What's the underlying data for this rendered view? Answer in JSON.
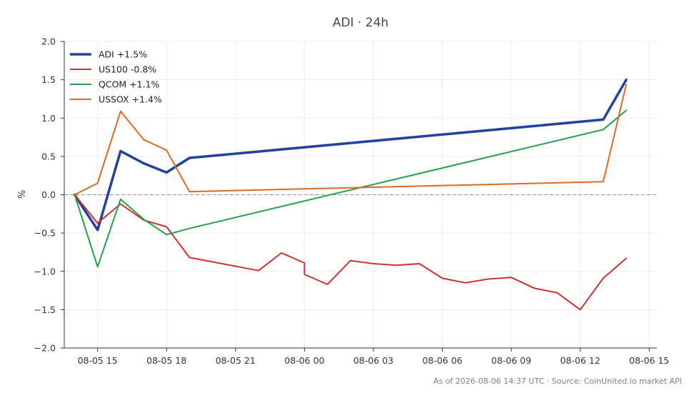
{
  "chart_data": {
    "type": "line",
    "title": "ADI · 24h",
    "ylabel": "%",
    "xlabel": "",
    "ylim": [
      -2.0,
      2.0
    ],
    "yticks": [
      -2.0,
      -1.5,
      -1.0,
      -0.5,
      0.0,
      0.5,
      1.0,
      1.5,
      2.0
    ],
    "ytick_labels": [
      "−2.0",
      "−1.5",
      "−1.0",
      "−0.5",
      "0.0",
      "0.5",
      "1.0",
      "1.5",
      "2.0"
    ],
    "xlim": [
      "2026-08-05 14:00",
      "2026-08-06 15:00"
    ],
    "xticks": [
      "2026-08-05 15:00",
      "2026-08-05 18:00",
      "2026-08-05 21:00",
      "2026-08-06 00:00",
      "2026-08-06 03:00",
      "2026-08-06 06:00",
      "2026-08-06 09:00",
      "2026-08-06 12:00",
      "2026-08-06 15:00"
    ],
    "xtick_labels": [
      "08-05 15",
      "08-05 18",
      "08-05 21",
      "08-06 00",
      "08-06 03",
      "08-06 06",
      "08-06 09",
      "08-06 12",
      "08-06 15"
    ],
    "grid": true,
    "zero_line": true,
    "legend_position": "top-left",
    "series": [
      {
        "name": "ADI +1.5%",
        "color": "#2341a0",
        "width": 3.5,
        "points": [
          [
            "2026-08-05 14:00",
            0.0
          ],
          [
            "2026-08-05 15:00",
            -0.46
          ],
          [
            "2026-08-05 16:00",
            0.57
          ],
          [
            "2026-08-05 17:00",
            0.41
          ],
          [
            "2026-08-05 18:00",
            0.29
          ],
          [
            "2026-08-05 19:00",
            0.48
          ],
          [
            "2026-08-06 13:00",
            0.98
          ],
          [
            "2026-08-06 14:00",
            1.5
          ]
        ]
      },
      {
        "name": "US100 -0.8%",
        "color": "#d03030",
        "width": 2,
        "points": [
          [
            "2026-08-05 14:00",
            0.0
          ],
          [
            "2026-08-05 15:00",
            -0.37
          ],
          [
            "2026-08-05 16:00",
            -0.12
          ],
          [
            "2026-08-05 17:00",
            -0.33
          ],
          [
            "2026-08-05 18:00",
            -0.42
          ],
          [
            "2026-08-05 19:00",
            -0.82
          ],
          [
            "2026-08-05 22:00",
            -0.99
          ],
          [
            "2026-08-05 23:00",
            -0.76
          ],
          [
            "2026-08-06 00:00",
            -0.89
          ],
          [
            "2026-08-06 00:00",
            -1.04
          ],
          [
            "2026-08-06 01:00",
            -1.17
          ],
          [
            "2026-08-06 02:00",
            -0.86
          ],
          [
            "2026-08-06 03:00",
            -0.9
          ],
          [
            "2026-08-06 04:00",
            -0.92
          ],
          [
            "2026-08-06 05:00",
            -0.9
          ],
          [
            "2026-08-06 06:00",
            -1.09
          ],
          [
            "2026-08-06 07:00",
            -1.15
          ],
          [
            "2026-08-06 08:00",
            -1.1
          ],
          [
            "2026-08-06 09:00",
            -1.08
          ],
          [
            "2026-08-06 10:00",
            -1.22
          ],
          [
            "2026-08-06 11:00",
            -1.28
          ],
          [
            "2026-08-06 12:00",
            -1.5
          ],
          [
            "2026-08-06 13:00",
            -1.09
          ],
          [
            "2026-08-06 14:00",
            -0.83
          ]
        ]
      },
      {
        "name": "QCOM +1.1%",
        "color": "#22a04a",
        "width": 2,
        "points": [
          [
            "2026-08-05 14:00",
            0.0
          ],
          [
            "2026-08-05 15:00",
            -0.94
          ],
          [
            "2026-08-05 16:00",
            -0.06
          ],
          [
            "2026-08-05 17:00",
            -0.32
          ],
          [
            "2026-08-05 18:00",
            -0.52
          ],
          [
            "2026-08-05 19:00",
            -0.44
          ],
          [
            "2026-08-06 13:00",
            0.85
          ],
          [
            "2026-08-06 14:00",
            1.1
          ]
        ]
      },
      {
        "name": "USSOX +1.4%",
        "color": "#e06a1b",
        "width": 2,
        "points": [
          [
            "2026-08-05 14:00",
            0.0
          ],
          [
            "2026-08-05 15:00",
            0.15
          ],
          [
            "2026-08-05 16:00",
            1.09
          ],
          [
            "2026-08-05 17:00",
            0.72
          ],
          [
            "2026-08-05 18:00",
            0.58
          ],
          [
            "2026-08-05 19:00",
            0.04
          ],
          [
            "2026-08-06 13:00",
            0.17
          ],
          [
            "2026-08-06 14:00",
            1.44
          ]
        ]
      }
    ]
  },
  "footer": "As of 2026-08-06 14:37 UTC · Source: CoinUnited.io market API"
}
